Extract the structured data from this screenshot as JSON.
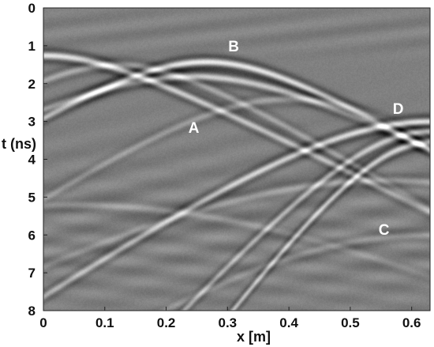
{
  "chart_data": {
    "type": "heatmap",
    "title": "",
    "xlabel": "x [m]",
    "ylabel": "t (ns)",
    "xlim": [
      0,
      0.63
    ],
    "ylim": [
      8,
      0
    ],
    "y_inverted": true,
    "x_ticks": [
      {
        "value": 0,
        "label": "0"
      },
      {
        "value": 0.1,
        "label": "0.1"
      },
      {
        "value": 0.2,
        "label": "0.2"
      },
      {
        "value": 0.3,
        "label": "0.3"
      },
      {
        "value": 0.4,
        "label": "0.4"
      },
      {
        "value": 0.5,
        "label": "0.5"
      },
      {
        "value": 0.6,
        "label": "0.6"
      }
    ],
    "y_ticks": [
      {
        "value": 0,
        "label": "0"
      },
      {
        "value": 1,
        "label": "1"
      },
      {
        "value": 2,
        "label": "2"
      },
      {
        "value": 3,
        "label": "3"
      },
      {
        "value": 4,
        "label": "4"
      },
      {
        "value": 5,
        "label": "5"
      },
      {
        "value": 6,
        "label": "6"
      },
      {
        "value": 7,
        "label": "7"
      },
      {
        "value": 8,
        "label": "8"
      }
    ],
    "grid": false,
    "legend": "none",
    "colormap": "gray",
    "background_color": "#808080",
    "annotations": [
      {
        "text": "A",
        "x": 0.245,
        "t": 3.15
      },
      {
        "text": "B",
        "x": 0.31,
        "t": 1.0
      },
      {
        "text": "C",
        "x": 0.555,
        "t": 5.85
      },
      {
        "text": "D",
        "x": 0.578,
        "t": 2.65
      }
    ],
    "reflections": [
      {
        "name": "B",
        "apex_x": 0.265,
        "apex_t": 1.42,
        "velocity": 0.105,
        "strength": 1.0
      },
      {
        "name": "A",
        "apex_x": 0.24,
        "apex_t": 1.8,
        "velocity": 0.12,
        "strength": 0.75
      },
      {
        "name": "D",
        "apex_x": 0.63,
        "apex_t": 3.0,
        "velocity": 0.09,
        "strength": 1.0
      },
      {
        "name": "C",
        "apex_x": 0.63,
        "apex_t": 3.55,
        "velocity": 0.045,
        "strength": 0.85
      },
      {
        "name": "",
        "apex_x": 0.63,
        "apex_t": 3.25,
        "velocity": 0.055,
        "strength": 0.7
      },
      {
        "name": "",
        "apex_x": 0.0,
        "apex_t": 1.25,
        "velocity": 0.12,
        "strength": 0.9
      },
      {
        "name": "",
        "apex_x": 0.12,
        "apex_t": 1.5,
        "velocity": 0.1,
        "strength": 0.45
      },
      {
        "name": "",
        "apex_x": 0.4,
        "apex_t": 2.4,
        "velocity": 0.09,
        "strength": 0.35
      },
      {
        "name": "",
        "apex_x": 0.56,
        "apex_t": 4.55,
        "velocity": 0.11,
        "strength": 0.35
      },
      {
        "name": "",
        "apex_x": 0.62,
        "apex_t": 6.0,
        "velocity": 0.08,
        "strength": 0.3
      },
      {
        "name": "",
        "apex_x": 0.05,
        "apex_t": 5.2,
        "velocity": 0.12,
        "strength": 0.25
      }
    ]
  }
}
